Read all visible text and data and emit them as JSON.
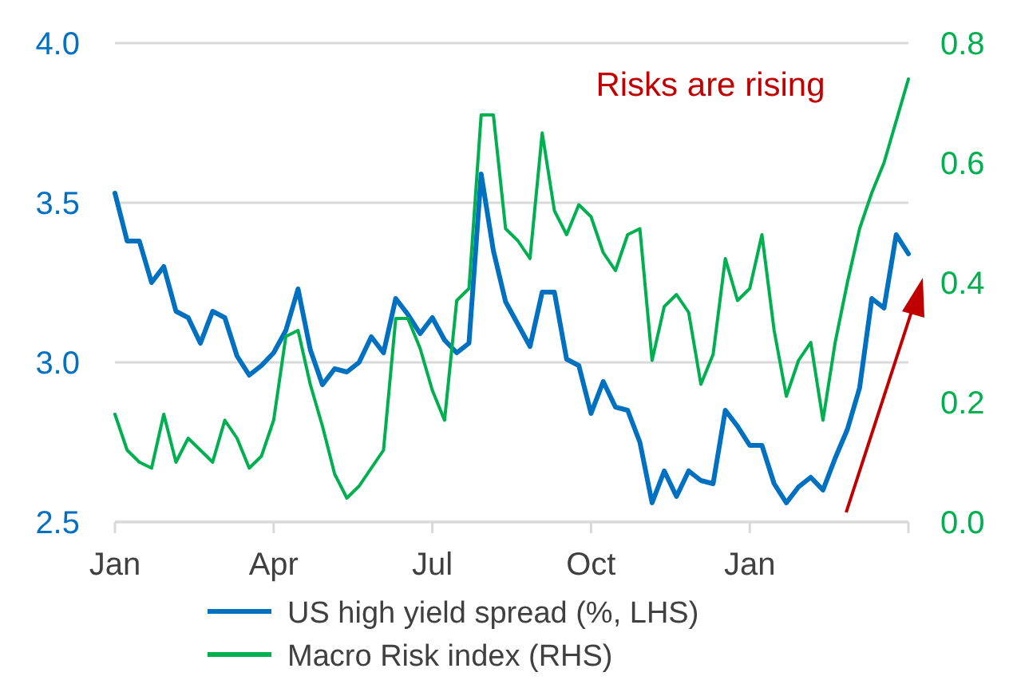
{
  "chart_data": {
    "type": "line",
    "categories": [
      "Jan",
      null,
      null,
      null,
      null,
      null,
      null,
      null,
      null,
      null,
      null,
      null,
      null,
      "Apr",
      null,
      null,
      null,
      null,
      null,
      null,
      null,
      null,
      null,
      null,
      null,
      null,
      "Jul",
      null,
      null,
      null,
      null,
      null,
      null,
      null,
      null,
      null,
      null,
      null,
      null,
      "Oct",
      null,
      null,
      null,
      null,
      null,
      null,
      null,
      null,
      null,
      null,
      null,
      null,
      "Jan",
      null,
      null,
      null,
      null,
      null,
      null,
      null,
      null,
      null,
      null,
      null,
      null,
      null
    ],
    "ylim": [
      2.5,
      4.0
    ],
    "yticks": [
      {
        "value": 2.5,
        "label": "2.5"
      },
      {
        "value": 3,
        "label": "3.0"
      },
      {
        "value": 3.5,
        "label": "3.5"
      },
      {
        "value": 4,
        "label": "4.0"
      }
    ],
    "y2lim": [
      0,
      0.8
    ],
    "y2ticks": [
      {
        "value": 0,
        "label": "0.0"
      },
      {
        "value": 0.2,
        "label": "0.2"
      },
      {
        "value": 0.4,
        "label": "0.4"
      },
      {
        "value": 0.6,
        "label": "0.6"
      },
      {
        "value": 0.8,
        "label": "0.8"
      }
    ],
    "grid": "y",
    "legend": "bottom",
    "line_style": "solid",
    "marker": "none",
    "series": [
      {
        "name": "US high yield spread (%, LHS)",
        "color": "#0070c0",
        "values": [
          3.53,
          3.38,
          3.38,
          3.25,
          3.3,
          3.16,
          3.14,
          3.06,
          3.16,
          3.14,
          3.02,
          2.96,
          2.99,
          3.03,
          3.1,
          3.23,
          3.04,
          2.93,
          2.98,
          2.97,
          3.0,
          3.08,
          3.03,
          3.2,
          3.15,
          3.09,
          3.14,
          3.07,
          3.03,
          3.06,
          3.59,
          3.35,
          3.19,
          3.12,
          3.05,
          3.22,
          3.22,
          3.01,
          2.99,
          2.84,
          2.94,
          2.86,
          2.85,
          2.75,
          2.56,
          2.66,
          2.58,
          2.66,
          2.63,
          2.62,
          2.85,
          2.8,
          2.74,
          2.74,
          2.62,
          2.56,
          2.61,
          2.64,
          2.6,
          2.7,
          2.79,
          2.92,
          3.2,
          3.17,
          3.4,
          3.34
        ]
      },
      {
        "name": "Macro Risk index (RHS)",
        "color": "#00b050",
        "axis": "y2",
        "values": [
          0.18,
          0.12,
          0.1,
          0.09,
          0.18,
          0.1,
          0.14,
          0.12,
          0.1,
          0.17,
          0.14,
          0.09,
          0.11,
          0.17,
          0.31,
          0.32,
          0.23,
          0.16,
          0.08,
          0.04,
          0.06,
          0.09,
          0.12,
          0.34,
          0.34,
          0.29,
          0.22,
          0.17,
          0.37,
          0.39,
          0.68,
          0.68,
          0.49,
          0.47,
          0.44,
          0.65,
          0.52,
          0.48,
          0.53,
          0.51,
          0.45,
          0.42,
          0.48,
          0.49,
          0.27,
          0.36,
          0.38,
          0.35,
          0.23,
          0.28,
          0.44,
          0.37,
          0.39,
          0.48,
          0.32,
          0.21,
          0.27,
          0.3,
          0.17,
          0.3,
          0.4,
          0.49,
          0.55,
          0.6,
          0.67,
          0.74
        ]
      }
    ],
    "annotations": [
      "Risks are rising"
    ]
  }
}
